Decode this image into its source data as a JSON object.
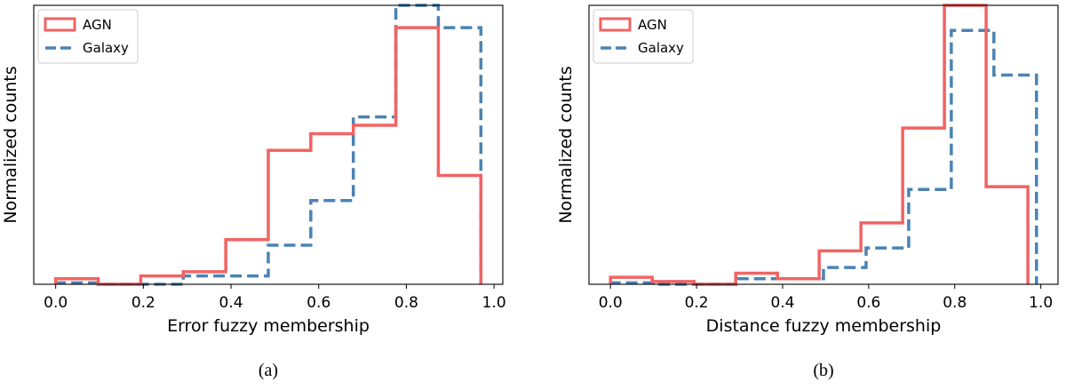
{
  "chart_data": [
    {
      "type": "histogram",
      "caption": "(a)",
      "xlabel": "Error fuzzy membership",
      "ylabel": "Normalized counts",
      "xlim": [
        -0.05,
        1.02
      ],
      "ylim": [
        0,
        1.0
      ],
      "x_ticks": [
        "0.0",
        "0.2",
        "0.4",
        "0.6",
        "0.8",
        "1.0"
      ],
      "x_tick_values": [
        0.0,
        0.2,
        0.4,
        0.6,
        0.8,
        1.0
      ],
      "y_ticks_shown": false,
      "legend_position": "top-left",
      "series": [
        {
          "name": "AGN",
          "color": "#f26363",
          "style": "solid",
          "bin_edges": [
            0.0,
            0.097,
            0.194,
            0.291,
            0.388,
            0.485,
            0.582,
            0.679,
            0.776,
            0.873,
            0.97
          ],
          "values": [
            0.02,
            0.0,
            0.03,
            0.045,
            0.16,
            0.48,
            0.54,
            0.57,
            0.92,
            0.39
          ]
        },
        {
          "name": "Galaxy",
          "color": "#4a83b4",
          "style": "dashed",
          "bin_edges": [
            0.0,
            0.097,
            0.194,
            0.291,
            0.388,
            0.485,
            0.582,
            0.679,
            0.776,
            0.873,
            0.97
          ],
          "values": [
            0.005,
            0.0,
            0.0,
            0.03,
            0.03,
            0.14,
            0.3,
            0.6,
            1.0,
            0.92
          ]
        }
      ]
    },
    {
      "type": "histogram",
      "caption": "(b)",
      "xlabel": "Distance fuzzy membership",
      "ylabel": "Normalized counts",
      "xlim": [
        -0.05,
        1.04
      ],
      "ylim": [
        0,
        1.0
      ],
      "x_ticks": [
        "0.0",
        "0.2",
        "0.4",
        "0.6",
        "0.8",
        "1.0"
      ],
      "x_tick_values": [
        0.0,
        0.2,
        0.4,
        0.6,
        0.8,
        1.0
      ],
      "y_ticks_shown": false,
      "legend_position": "top-left",
      "series": [
        {
          "name": "AGN",
          "color": "#f26363",
          "style": "solid",
          "bin_edges": [
            0.0,
            0.097,
            0.194,
            0.291,
            0.388,
            0.485,
            0.582,
            0.679,
            0.776,
            0.873,
            0.97
          ],
          "values": [
            0.025,
            0.01,
            0.0,
            0.04,
            0.02,
            0.12,
            0.22,
            0.56,
            1.0,
            0.35
          ]
        },
        {
          "name": "Galaxy",
          "color": "#4a83b4",
          "style": "dashed",
          "bin_edges": [
            0.0,
            0.099,
            0.198,
            0.297,
            0.396,
            0.495,
            0.594,
            0.693,
            0.792,
            0.891,
            0.99
          ],
          "values": [
            0.005,
            0.0,
            0.0,
            0.02,
            0.02,
            0.06,
            0.13,
            0.34,
            0.91,
            0.75
          ]
        }
      ]
    }
  ]
}
